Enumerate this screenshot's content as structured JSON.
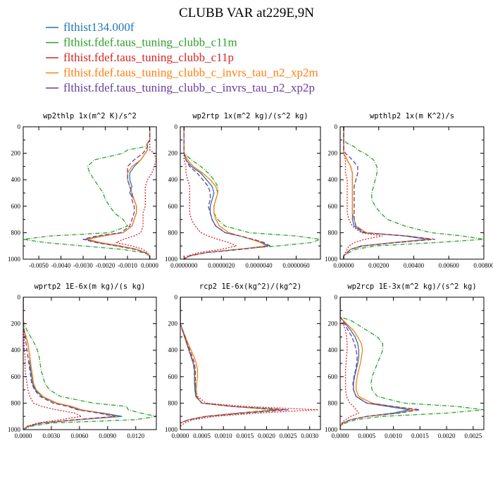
{
  "chart_data": {
    "type": "line",
    "title": "CLUBB VAR at229E,9N",
    "legend_placement": "top-left",
    "series_styles": [
      {
        "name": "flthist134.000f",
        "color": "#1f77b4",
        "dash": "solid"
      },
      {
        "name": "flthist.fdef.taus_tuning_clubb_c11m",
        "color": "#2ca02c",
        "dash": "6,2,1,2"
      },
      {
        "name": "flthist.fdef.taus_tuning_clubb_c11p",
        "color": "#d62728",
        "dash": "2,2"
      },
      {
        "name": "flthist.fdef.taus_tuning_clubb_c_invrs_tau_n2_xp2m",
        "color": "#ff7f0e",
        "dash": "solid"
      },
      {
        "name": "flthist.fdef.taus_tuning_clubb_c_invrs_tau_n2_xp2p",
        "color": "#6a3d9a",
        "dash": "6,3"
      }
    ],
    "levels": [
      0,
      100,
      125,
      150,
      175,
      200,
      250,
      300,
      350,
      400,
      450,
      500,
      550,
      600,
      650,
      700,
      750,
      800,
      825,
      850,
      875,
      900,
      925,
      950,
      975,
      1000
    ],
    "ylim": [
      0,
      1000
    ],
    "y_ticks": [
      "0",
      "200",
      "400",
      "600",
      "800",
      "1000"
    ],
    "panels": [
      {
        "title": "wp2thlp  1x(m^2 K)/s^2",
        "xlim": [
          -0.0057,
          0.0003
        ],
        "x_ticks": [
          -0.005,
          -0.004,
          -0.003,
          -0.002,
          -0.001,
          0.0
        ],
        "x_tick_labels": [
          "-0.0050",
          "-0.0040",
          "-0.0030",
          "-0.0020",
          "-0.0010",
          "0.0000"
        ],
        "series_values": [
          [
            0.0,
            0.0,
            -0.0001,
            -0.0001,
            -0.0001,
            -0.0002,
            -0.0004,
            -0.0007,
            -0.0009,
            -0.0009,
            -0.0008,
            -0.0009,
            -0.0007,
            -0.0006,
            -0.0006,
            -0.0007,
            -0.0008,
            -0.0012,
            -0.0022,
            -0.0029,
            -0.0023,
            -0.0014,
            -0.0006,
            -0.0002,
            0.0,
            0.0
          ],
          [
            0.0,
            0.0,
            -0.0001,
            -0.0002,
            -0.001,
            -0.0012,
            -0.0025,
            -0.0028,
            -0.0027,
            -0.0025,
            -0.0023,
            -0.0021,
            -0.002,
            -0.0018,
            -0.0016,
            -0.0012,
            -0.001,
            -0.0018,
            -0.0045,
            -0.0057,
            -0.0047,
            -0.003,
            -0.0013,
            -0.0003,
            0.0,
            0.0
          ],
          [
            0.0,
            0.0,
            0.0,
            0.0,
            0.0,
            0.0002,
            0.0003,
            0.0002,
            0.0001,
            -0.0001,
            -0.0002,
            -0.0002,
            -0.0002,
            -0.0002,
            -0.0003,
            -0.0003,
            -0.0003,
            -0.0004,
            -0.0007,
            -0.0012,
            -0.0015,
            -0.0008,
            -0.0003,
            -0.0001,
            0.0,
            0.0
          ],
          [
            0.0,
            0.0,
            -0.0001,
            -0.0001,
            -0.0001,
            -0.0002,
            -0.0004,
            -0.0008,
            -0.001,
            -0.001,
            -0.0009,
            -0.0008,
            -0.0007,
            -0.0006,
            -0.0006,
            -0.0007,
            -0.0008,
            -0.0012,
            -0.0021,
            -0.0028,
            -0.0022,
            -0.0013,
            -0.0006,
            -0.0002,
            0.0,
            0.0
          ],
          [
            0.0,
            0.0,
            -0.0001,
            -0.0001,
            -0.0002,
            -0.0003,
            -0.0007,
            -0.001,
            -0.001,
            -0.001,
            -0.0009,
            -0.0008,
            -0.0008,
            -0.0007,
            -0.0007,
            -0.0008,
            -0.0009,
            -0.0013,
            -0.0024,
            -0.003,
            -0.0024,
            -0.0015,
            -0.0007,
            -0.0002,
            0.0,
            0.0
          ]
        ]
      },
      {
        "title": "wp2rtp  1x(m^2 kg)/(s^2 kg)",
        "xlim": [
          -2e-07,
          7.3e-06
        ],
        "x_ticks": [
          0.0,
          2e-06,
          4e-06,
          6e-06
        ],
        "x_tick_labels": [
          "0.0000000",
          "0.0000020",
          "0.0000040",
          "0.0000060"
        ],
        "series_values": [
          [
            0.0,
            0.0,
            0.0,
            0.0,
            0.0,
            0.0,
            1e-07,
            4e-07,
            9e-07,
            1.2e-06,
            1.5e-06,
            1.6e-06,
            1.5e-06,
            1.4e-06,
            1.4e-06,
            1.5e-06,
            1.7e-06,
            2.2e-06,
            3e-06,
            3.6e-06,
            4.2e-06,
            4.5e-06,
            3e-06,
            1.2e-06,
            3e-07,
            0.0
          ],
          [
            0.0,
            0.0,
            0.0,
            0.0,
            0.0,
            0.0,
            4e-07,
            9e-07,
            1.3e-06,
            1.6e-06,
            1.8e-06,
            1.8e-06,
            1.7e-06,
            1.6e-06,
            1.6e-06,
            1.8e-06,
            2.2e-06,
            3.5e-06,
            6e-06,
            7.3e-06,
            6.8e-06,
            5e-06,
            2.8e-06,
            1.2e-06,
            3e-07,
            0.0
          ],
          [
            0.0,
            0.0,
            0.0,
            0.0,
            0.0,
            0.0,
            0.0,
            1e-07,
            1e-07,
            2e-07,
            3e-07,
            3e-07,
            3e-07,
            3e-07,
            3e-07,
            4e-07,
            6e-07,
            9e-07,
            1.3e-06,
            1.8e-06,
            2.4e-06,
            2.8e-06,
            2e-06,
            8e-07,
            2e-07,
            0.0
          ],
          [
            0.0,
            0.0,
            0.0,
            0.0,
            0.0,
            0.0,
            2e-07,
            5e-07,
            1e-06,
            1.4e-06,
            1.7e-06,
            1.8e-06,
            1.7e-06,
            1.6e-06,
            1.6e-06,
            1.7e-06,
            1.9e-06,
            2.4e-06,
            3e-06,
            3.6e-06,
            4.1e-06,
            4.4e-06,
            3e-06,
            1.2e-06,
            3e-07,
            0.0
          ],
          [
            0.0,
            0.0,
            0.0,
            0.0,
            0.0,
            0.0,
            1e-07,
            3e-07,
            7e-07,
            1e-06,
            1.3e-06,
            1.4e-06,
            1.4e-06,
            1.3e-06,
            1.4e-06,
            1.5e-06,
            1.7e-06,
            2.2e-06,
            3e-06,
            3.7e-06,
            4.3e-06,
            4.6e-06,
            3.1e-06,
            1.2e-06,
            3e-07,
            0.0
          ]
        ]
      },
      {
        "title": "wpthlp2  1x(m K^2)/s",
        "xlim": [
          -0.0002,
          0.008
        ],
        "x_ticks": [
          0.0,
          0.002,
          0.004,
          0.006,
          0.008
        ],
        "x_tick_labels": [
          "0.00000",
          "0.00200",
          "0.00400",
          "0.00600",
          "0.00800"
        ],
        "series_values": [
          [
            0.0,
            0.0,
            0.0,
            0.0,
            0.0,
            0.0,
            0.0002,
            0.0004,
            0.0005,
            0.0005,
            0.0005,
            0.0005,
            0.0005,
            0.0005,
            0.0005,
            0.0005,
            0.0006,
            0.0011,
            0.0035,
            0.0048,
            0.0028,
            0.001,
            0.0004,
            0.0002,
            0.0,
            0.0
          ],
          [
            0.0,
            0.0,
            0.0002,
            0.0006,
            0.0008,
            0.0012,
            0.0017,
            0.0019,
            0.0019,
            0.0018,
            0.0017,
            0.0016,
            0.0016,
            0.0018,
            0.0021,
            0.0025,
            0.0035,
            0.005,
            0.0068,
            0.008,
            0.0052,
            0.0018,
            0.0007,
            0.0003,
            0.0,
            0.0
          ],
          [
            0.0,
            0.0,
            0.0,
            0.0,
            0.0,
            0.0,
            0.0001,
            0.0001,
            0.0001,
            0.0002,
            0.0002,
            0.0002,
            0.0002,
            0.0002,
            0.0002,
            0.0003,
            0.0005,
            0.001,
            0.0022,
            0.0012,
            0.0006,
            0.0003,
            0.0002,
            0.0001,
            0.0,
            0.0
          ],
          [
            0.0,
            0.0,
            0.0,
            0.0,
            0.0,
            0.0,
            0.0002,
            0.0004,
            0.0005,
            0.0005,
            0.0005,
            0.0005,
            0.0005,
            0.0005,
            0.0005,
            0.0006,
            0.0007,
            0.0013,
            0.0037,
            0.005,
            0.0029,
            0.0011,
            0.0004,
            0.0002,
            0.0,
            0.0
          ],
          [
            0.0,
            0.0,
            0.0,
            0.0,
            0.0,
            0.0001,
            0.0005,
            0.0008,
            0.0008,
            0.0007,
            0.0006,
            0.0006,
            0.0006,
            0.0006,
            0.0006,
            0.0006,
            0.0007,
            0.0012,
            0.0036,
            0.0052,
            0.003,
            0.0011,
            0.0004,
            0.0002,
            0.0,
            0.0
          ]
        ]
      },
      {
        "title": "wprtp2  1E-6x(m kg)/(s kg)",
        "xlim": [
          0.0,
          0.0142
        ],
        "x_ticks": [
          0.0,
          0.003,
          0.006,
          0.009,
          0.012
        ],
        "x_tick_labels": [
          "0.0000",
          "0.0030",
          "0.0060",
          "0.0090",
          "0.0120"
        ],
        "series_values": [
          [
            0.0,
            0.0,
            0.0,
            0.0,
            0.0,
            0.0,
            0.0001,
            0.0003,
            0.0005,
            0.0006,
            0.0007,
            0.0007,
            0.0008,
            0.0009,
            0.001,
            0.0013,
            0.002,
            0.0035,
            0.005,
            0.006,
            0.0085,
            0.0105,
            0.006,
            0.002,
            0.0005,
            0.0
          ],
          [
            0.0,
            0.0,
            0.0,
            0.0,
            0.0,
            0.0001,
            0.0004,
            0.0008,
            0.0012,
            0.0015,
            0.0017,
            0.0018,
            0.0019,
            0.0021,
            0.0023,
            0.0028,
            0.004,
            0.0075,
            0.011,
            0.0112,
            0.0125,
            0.0142,
            0.012,
            0.003,
            0.0008,
            0.0
          ],
          [
            0.0,
            0.0,
            0.0,
            0.0,
            0.0,
            0.0,
            0.0,
            0.0001,
            0.0001,
            0.0001,
            0.0002,
            0.0002,
            0.0002,
            0.0003,
            0.0004,
            0.0005,
            0.0007,
            0.0011,
            0.002,
            0.0035,
            0.0055,
            0.0062,
            0.004,
            0.0015,
            0.0004,
            0.0
          ],
          [
            0.0,
            0.0,
            0.0,
            0.0,
            0.0,
            0.0,
            0.0001,
            0.0003,
            0.0005,
            0.0006,
            0.0007,
            0.0008,
            0.0009,
            0.001,
            0.0011,
            0.0014,
            0.0021,
            0.0036,
            0.0052,
            0.0062,
            0.0082,
            0.01,
            0.0058,
            0.0019,
            0.0005,
            0.0
          ],
          [
            0.0,
            0.0,
            0.0,
            0.0,
            0.0,
            0.0,
            0.0001,
            0.0002,
            0.0003,
            0.0004,
            0.0005,
            0.0006,
            0.0007,
            0.0008,
            0.0009,
            0.0012,
            0.0018,
            0.0032,
            0.0048,
            0.0058,
            0.008,
            0.0098,
            0.0056,
            0.0019,
            0.0005,
            0.0
          ]
        ]
      },
      {
        "title": "rcp2  1E-6x(kg^2)/(kg^2)",
        "xlim": [
          0.0,
          0.00325
        ],
        "x_ticks": [
          0.0,
          0.0005,
          0.001,
          0.0015,
          0.002,
          0.0025,
          0.003
        ],
        "x_tick_labels": [
          "0.0000",
          "0.0005",
          "0.0010",
          "0.0015",
          "0.0020",
          "0.0025",
          "0.0030"
        ],
        "series_values": [
          [
            0.0,
            0.0,
            0.0,
            0.0,
            0.0,
            0.0,
            5e-05,
            0.0001,
            0.00015,
            0.0002,
            0.00025,
            0.0003,
            0.00033,
            0.00033,
            0.00033,
            0.00034,
            0.00036,
            0.0005,
            0.0012,
            0.0023,
            0.0014,
            0.0006,
            0.0002,
            0.0,
            0.0,
            0.0
          ],
          [
            0.0,
            0.0,
            0.0,
            0.0,
            0.0,
            0.0,
            5e-05,
            0.0001,
            0.00015,
            0.0002,
            0.00025,
            0.0003,
            0.00032,
            0.00033,
            0.00033,
            0.00034,
            0.00036,
            0.0005,
            0.0012,
            0.0022,
            0.0013,
            0.0006,
            0.0002,
            0.0,
            0.0,
            0.0
          ],
          [
            0.0,
            0.0,
            0.0,
            0.0,
            0.0,
            0.0,
            5e-05,
            0.0001,
            0.00015,
            0.0002,
            0.00026,
            0.0003,
            0.00033,
            0.00034,
            0.00035,
            0.00036,
            0.0004,
            0.0006,
            0.0015,
            0.0032,
            0.0018,
            0.0008,
            0.0003,
            0.0001,
            0.0,
            0.0
          ],
          [
            0.0,
            0.0,
            0.0,
            0.0,
            0.0,
            0.0,
            6e-05,
            0.00012,
            0.00018,
            0.00025,
            0.00032,
            0.00037,
            0.0004,
            0.0004,
            0.00038,
            0.00037,
            0.00038,
            0.0005,
            0.0012,
            0.0024,
            0.0014,
            0.0006,
            0.0002,
            0.0,
            0.0,
            0.0
          ],
          [
            0.0,
            0.0,
            0.0,
            0.0,
            0.0,
            0.0,
            5e-05,
            0.00011,
            0.00016,
            0.00022,
            0.00028,
            0.00033,
            0.00035,
            0.00035,
            0.00035,
            0.00035,
            0.00037,
            0.0005,
            0.0012,
            0.0025,
            0.0015,
            0.0006,
            0.0002,
            0.0,
            0.0,
            0.0
          ]
        ]
      },
      {
        "title": "wp2rcp  1E-3x(m^2 kg)/(s^2 kg)",
        "xlim": [
          0.0,
          0.0027
        ],
        "x_ticks": [
          0.0,
          0.0005,
          0.001,
          0.0015,
          0.002,
          0.0025
        ],
        "x_tick_labels": [
          "0.0000",
          "0.0005",
          "0.0010",
          "0.0015",
          "0.0020",
          "0.0025"
        ],
        "series_values": [
          [
            0.0,
            0.0,
            0.0,
            0.0,
            5e-05,
            0.0001,
            0.0002,
            0.00028,
            0.00033,
            0.00035,
            0.00035,
            0.00033,
            0.0003,
            0.00027,
            0.00025,
            0.00025,
            0.0003,
            0.0005,
            0.0009,
            0.0013,
            0.001,
            0.0005,
            0.0002,
            5e-05,
            0.0,
            0.0
          ],
          [
            0.0,
            0.0,
            0.0,
            0.0,
            0.0002,
            0.0003,
            0.0005,
            0.0007,
            0.0008,
            0.0008,
            0.00075,
            0.0007,
            0.00065,
            0.0006,
            0.00058,
            0.0006,
            0.0007,
            0.0012,
            0.0022,
            0.0027,
            0.002,
            0.0008,
            0.0003,
            0.0001,
            0.0,
            0.0
          ],
          [
            0.0,
            0.0,
            0.0,
            0.0,
            0.0,
            5e-05,
            0.0001,
            0.00012,
            0.00013,
            0.00013,
            0.00012,
            0.00011,
            0.0001,
            0.0001,
            0.0001,
            0.0001,
            0.00012,
            0.00018,
            0.00025,
            0.0003,
            0.00035,
            0.0002,
            0.0001,
            3e-05,
            0.0,
            0.0
          ],
          [
            0.0,
            0.0,
            0.0,
            0.0,
            6e-05,
            0.00012,
            0.00025,
            0.00033,
            0.0004,
            0.00042,
            0.0004,
            0.00038,
            0.00035,
            0.00032,
            0.0003,
            0.0003,
            0.00035,
            0.0006,
            0.001,
            0.0014,
            0.0011,
            0.0005,
            0.0002,
            5e-05,
            0.0,
            0.0
          ],
          [
            0.0,
            0.0,
            0.0,
            0.0,
            4e-05,
            8e-05,
            0.00015,
            0.00022,
            0.00027,
            0.0003,
            0.00032,
            0.00031,
            0.00029,
            0.00026,
            0.00024,
            0.00025,
            0.0003,
            0.0005,
            0.001,
            0.0015,
            0.0011,
            0.0005,
            0.0002,
            5e-05,
            0.0,
            0.0
          ]
        ]
      }
    ]
  }
}
